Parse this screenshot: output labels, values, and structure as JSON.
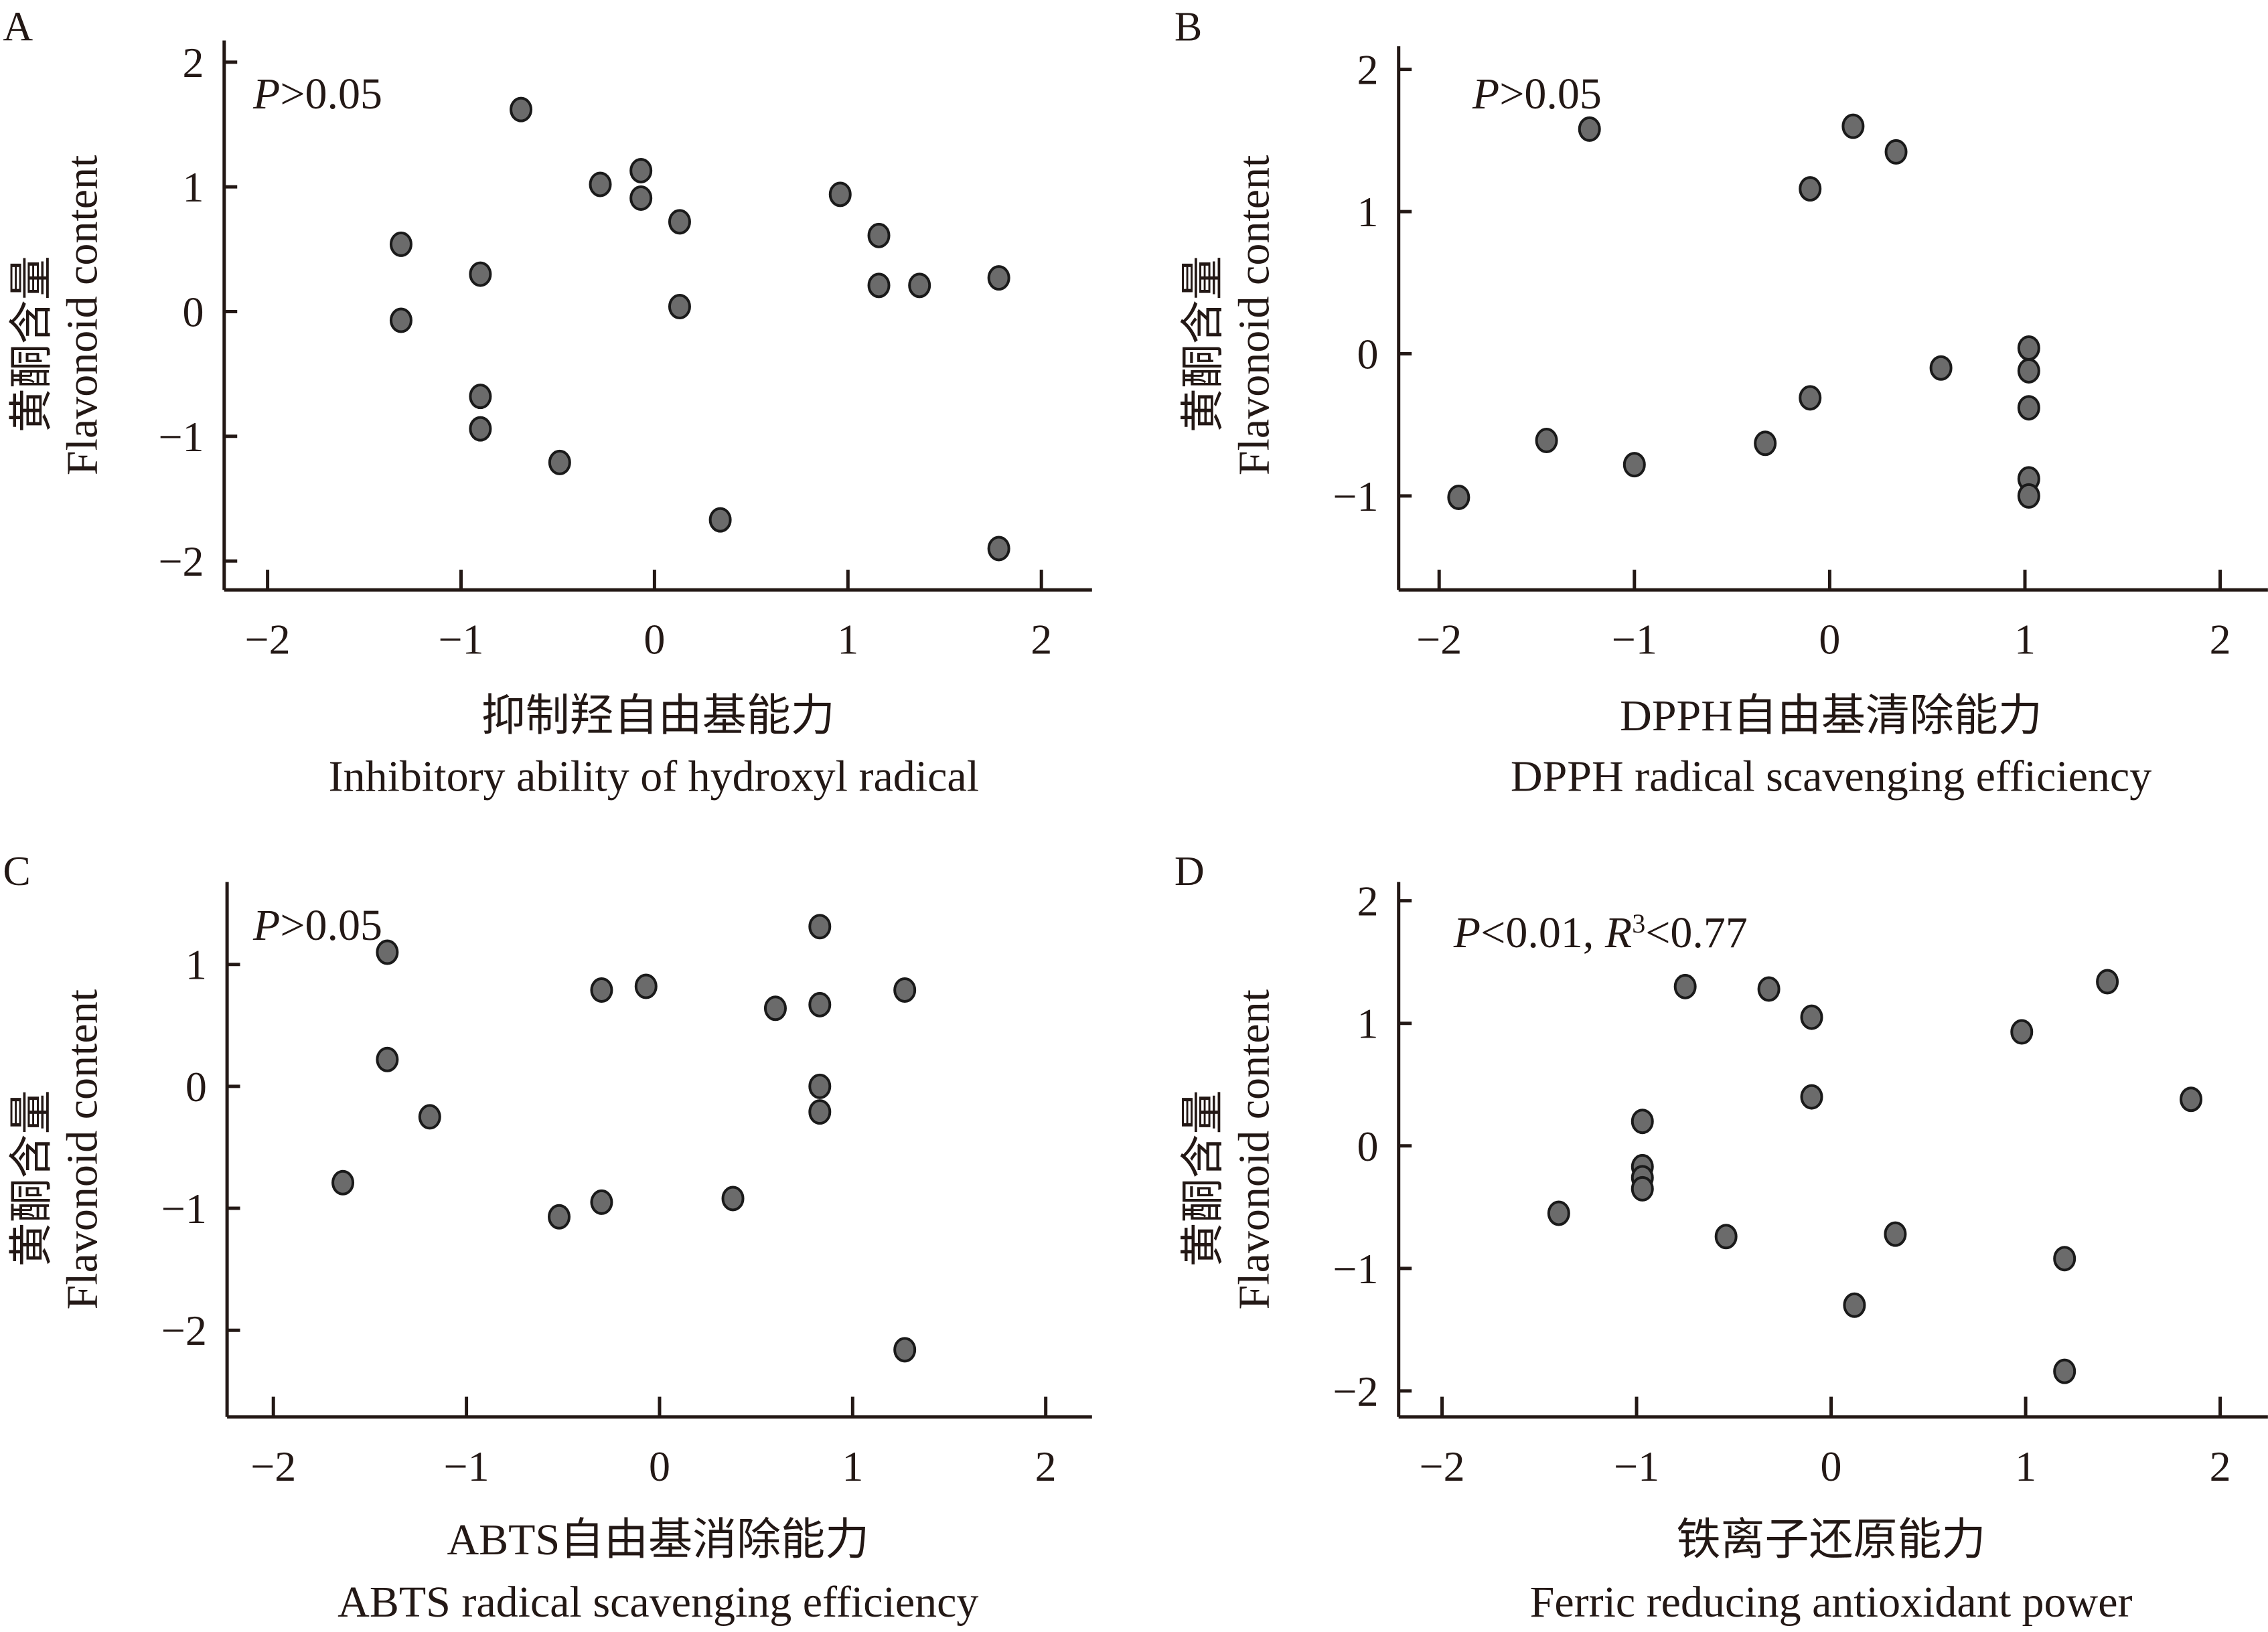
{
  "y_title_cn": "黄酮含量",
  "y_title_en": "Flavonoid content",
  "chart_data": [
    {
      "panel": "A",
      "type": "scatter",
      "annotation": {
        "p": "P",
        "rest": ">0.05"
      },
      "xlabel_cn": "抑制羟自由基能力",
      "xlabel_en": "Inhibitory ability of hydroxyl radical",
      "ylabel": "黄酮含量 Flavonoid content",
      "xlim": [
        -2.2,
        2.25
      ],
      "ylim": [
        -2.2,
        2.2
      ],
      "xticks": [
        -2,
        -1,
        0,
        1,
        2
      ],
      "yticks": [
        -2,
        -1,
        0,
        1,
        2
      ],
      "grid": false,
      "points": [
        [
          -0.69,
          1.62
        ],
        [
          -1.31,
          0.54
        ],
        [
          -1.31,
          -0.07
        ],
        [
          -0.9,
          0.3
        ],
        [
          -0.9,
          -0.68
        ],
        [
          -0.9,
          -0.94
        ],
        [
          -0.49,
          -1.21
        ],
        [
          -0.28,
          1.02
        ],
        [
          -0.07,
          1.13
        ],
        [
          -0.07,
          0.91
        ],
        [
          0.13,
          0.72
        ],
        [
          0.13,
          0.04
        ],
        [
          0.34,
          -1.67
        ],
        [
          0.96,
          0.94
        ],
        [
          1.16,
          0.61
        ],
        [
          1.16,
          0.21
        ],
        [
          1.37,
          0.21
        ],
        [
          1.78,
          0.27
        ],
        [
          1.78,
          -1.9
        ]
      ]
    },
    {
      "panel": "B",
      "type": "scatter",
      "annotation": {
        "p": "P",
        "rest": ">0.05"
      },
      "xlabel_cn": "DPPH自由基清除能力",
      "xlabel_en": "DPPH radical scavenging efficiency",
      "ylabel": "黄酮含量 Flavonoid content",
      "xlim": [
        -2.2,
        2.25
      ],
      "ylim": [
        -1.7,
        2.2
      ],
      "xticks": [
        -2,
        -1,
        0,
        1,
        2
      ],
      "yticks": [
        -1,
        0,
        1,
        2
      ],
      "grid": false,
      "points": [
        [
          -1.9,
          -1.01
        ],
        [
          -1.45,
          -0.61
        ],
        [
          -1.23,
          1.58
        ],
        [
          -1.0,
          -0.78
        ],
        [
          -0.33,
          -0.63
        ],
        [
          -0.1,
          1.16
        ],
        [
          -0.1,
          -0.31
        ],
        [
          0.12,
          1.6
        ],
        [
          0.34,
          1.42
        ],
        [
          0.57,
          -0.1
        ],
        [
          1.02,
          0.04
        ],
        [
          1.02,
          -0.12
        ],
        [
          1.02,
          -0.38
        ],
        [
          1.02,
          -0.88
        ],
        [
          1.02,
          -1.0
        ]
      ]
    },
    {
      "panel": "C",
      "type": "scatter",
      "annotation": {
        "p": "P",
        "rest": ">0.05"
      },
      "xlabel_cn": "ABTS自由基消除能力",
      "xlabel_en": "ABTS radical scavenging efficiency",
      "ylabel": "黄酮含量 Flavonoid content",
      "xlim": [
        -2.2,
        2.25
      ],
      "ylim": [
        -2.7,
        1.7
      ],
      "xticks": [
        -2,
        -1,
        0,
        1,
        2
      ],
      "yticks": [
        -2,
        -1,
        0,
        1
      ],
      "grid": false,
      "points": [
        [
          -1.64,
          -0.79
        ],
        [
          -1.41,
          1.1
        ],
        [
          -1.41,
          0.22
        ],
        [
          -1.19,
          -0.25
        ],
        [
          -0.52,
          -1.07
        ],
        [
          -0.3,
          0.79
        ],
        [
          -0.3,
          -0.95
        ],
        [
          -0.07,
          0.82
        ],
        [
          0.38,
          -0.92
        ],
        [
          0.6,
          0.64
        ],
        [
          0.83,
          1.31
        ],
        [
          0.83,
          0.67
        ],
        [
          0.83,
          0.0
        ],
        [
          0.83,
          -0.21
        ],
        [
          1.27,
          0.79
        ],
        [
          1.27,
          -2.16
        ]
      ]
    },
    {
      "panel": "D",
      "type": "scatter",
      "annotation": {
        "p": "P",
        "mid": "<0.01, ",
        "r": "R",
        "sup": "3",
        "rest": "<0.77"
      },
      "xlabel_cn": "铁离子还原能力",
      "xlabel_en": "Ferric reducing antioxidant power",
      "ylabel": "黄酮含量 Flavonoid content",
      "xlim": [
        -2.2,
        2.25
      ],
      "ylim": [
        -2.2,
        2.2
      ],
      "xticks": [
        -2,
        -1,
        0,
        1,
        2
      ],
      "yticks": [
        -2,
        -1,
        0,
        1,
        2
      ],
      "grid": false,
      "points": [
        [
          -1.4,
          -0.55
        ],
        [
          -0.97,
          0.2
        ],
        [
          -0.97,
          -0.17
        ],
        [
          -0.97,
          -0.26
        ],
        [
          -0.97,
          -0.35
        ],
        [
          -0.75,
          1.3
        ],
        [
          -0.54,
          -0.74
        ],
        [
          -0.32,
          1.28
        ],
        [
          -0.1,
          1.05
        ],
        [
          -0.1,
          0.4
        ],
        [
          0.12,
          -1.3
        ],
        [
          0.33,
          -0.72
        ],
        [
          0.98,
          0.93
        ],
        [
          1.2,
          -0.92
        ],
        [
          1.2,
          -1.84
        ],
        [
          1.42,
          1.34
        ],
        [
          1.85,
          0.38
        ]
      ]
    }
  ]
}
